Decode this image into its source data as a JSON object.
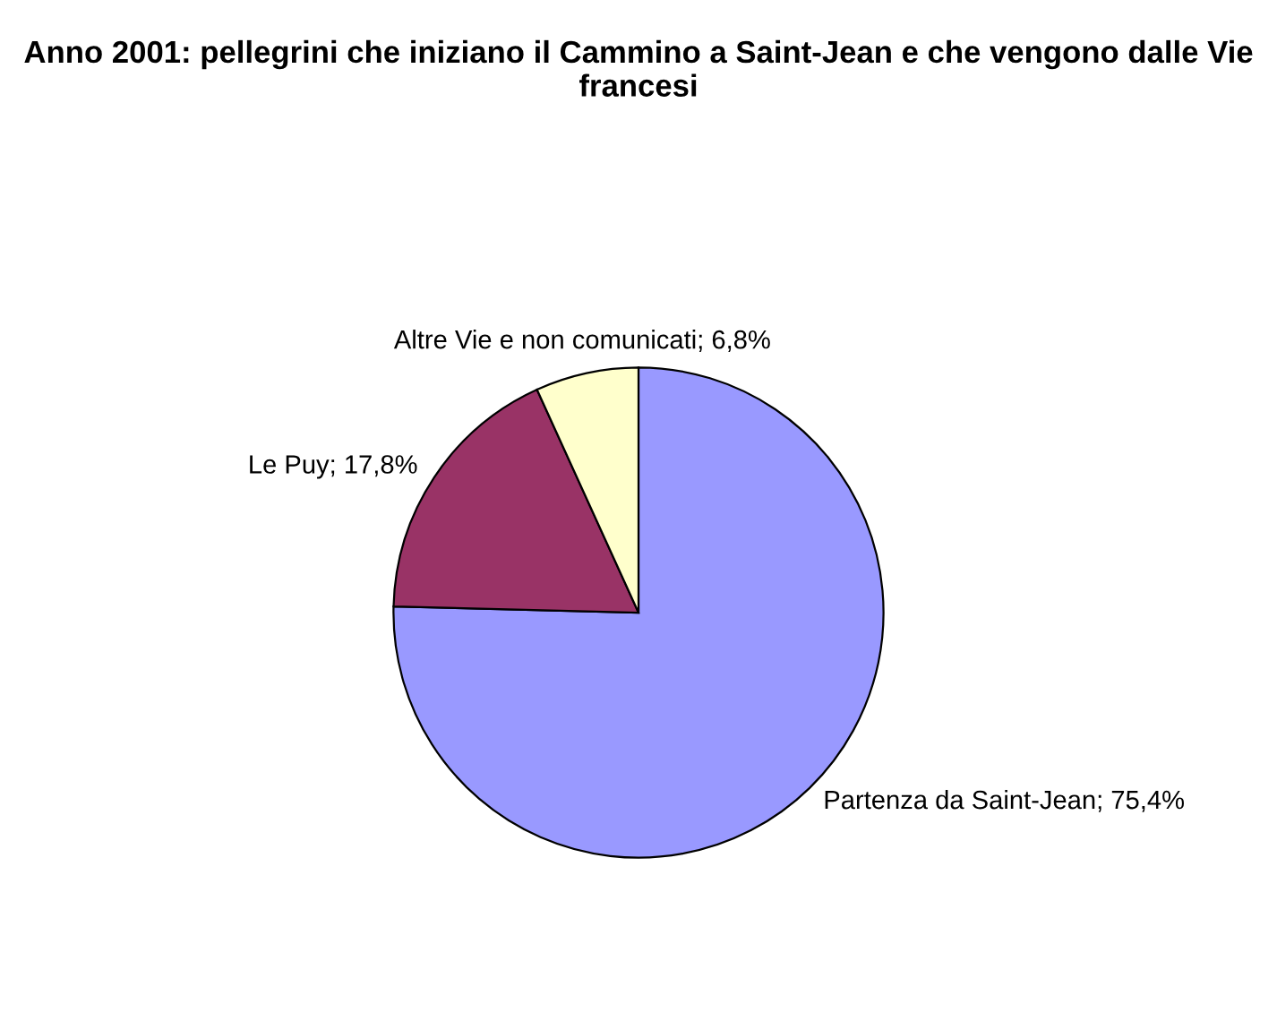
{
  "chart_data": {
    "type": "pie",
    "title": "Anno 2001: pellegrini che iniziano il Cammino a Saint-Jean e che vengono dalle Vie francesi",
    "categories": [
      "Partenza da Saint-Jean",
      "Le Puy",
      "Altre Vie e non comunicati"
    ],
    "values": [
      75.4,
      17.8,
      6.8
    ],
    "value_labels": [
      "75,4%",
      "17,8%",
      "6,8%"
    ],
    "colors": [
      "#9999ff",
      "#993366",
      "#ffffcc"
    ],
    "legend": false
  }
}
